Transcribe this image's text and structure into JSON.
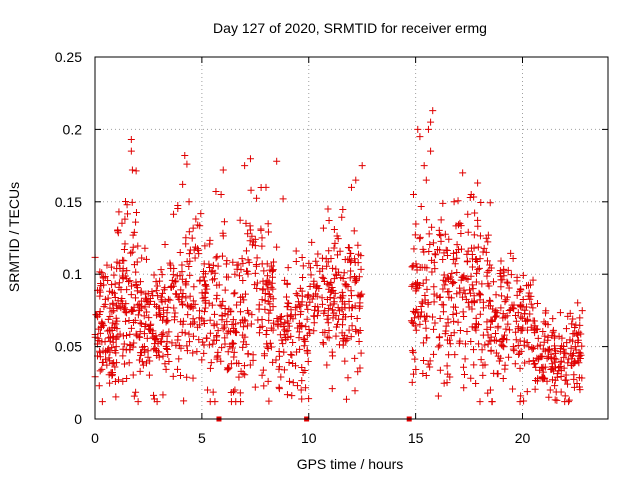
{
  "chart_data": {
    "type": "scatter",
    "title": "Day 127 of 2020, SRMTID for receiver ermg",
    "xlabel": "GPS time / hours",
    "ylabel": "SRMTID / TECUs",
    "xlim": [
      0,
      24
    ],
    "ylim": [
      0,
      0.25
    ],
    "xticks": [
      0,
      5,
      10,
      15,
      20
    ],
    "xtick_labels": [
      "0",
      "5",
      "10",
      "15",
      "20"
    ],
    "yticks": [
      0,
      0.05,
      0.1,
      0.15,
      0.2,
      0.25
    ],
    "ytick_labels": [
      "0",
      "0.05",
      "0.1",
      "0.15",
      "0.2",
      "0.25"
    ],
    "grid": true,
    "marker": "plus",
    "color": "#e00000",
    "series": [
      {
        "name": "SRMTID",
        "clusters": [
          {
            "x_range": [
              0.0,
              1.0
            ],
            "base": 0.065,
            "spread": 0.022,
            "count": 110
          },
          {
            "x_range": [
              1.0,
              2.0
            ],
            "base": 0.085,
            "spread": 0.03,
            "count": 100
          },
          {
            "x_range": [
              2.0,
              3.5
            ],
            "base": 0.065,
            "spread": 0.02,
            "count": 130
          },
          {
            "x_range": [
              3.5,
              5.5
            ],
            "base": 0.08,
            "spread": 0.028,
            "count": 150
          },
          {
            "x_range": [
              5.5,
              7.0
            ],
            "base": 0.065,
            "spread": 0.03,
            "count": 120
          },
          {
            "x_range": [
              7.0,
              8.5
            ],
            "base": 0.085,
            "spread": 0.03,
            "count": 110
          },
          {
            "x_range": [
              8.5,
              10.0
            ],
            "base": 0.06,
            "spread": 0.022,
            "count": 110
          },
          {
            "x_range": [
              10.0,
              12.5
            ],
            "base": 0.085,
            "spread": 0.025,
            "count": 190
          },
          {
            "x_range": [
              14.8,
              16.0
            ],
            "base": 0.08,
            "spread": 0.03,
            "count": 90
          },
          {
            "x_range": [
              16.0,
              18.5
            ],
            "base": 0.085,
            "spread": 0.03,
            "count": 200
          },
          {
            "x_range": [
              18.5,
              20.5
            ],
            "base": 0.065,
            "spread": 0.022,
            "count": 150
          },
          {
            "x_range": [
              20.5,
              22.8
            ],
            "base": 0.045,
            "spread": 0.015,
            "count": 170
          }
        ],
        "peaks": [
          [
            1.7,
            0.193
          ],
          [
            1.7,
            0.185
          ],
          [
            1.75,
            0.172
          ],
          [
            1.5,
            0.148
          ],
          [
            1.4,
            0.138
          ],
          [
            4.2,
            0.182
          ],
          [
            4.3,
            0.176
          ],
          [
            4.1,
            0.162
          ],
          [
            4.4,
            0.15
          ],
          [
            6.0,
            0.172
          ],
          [
            5.9,
            0.155
          ],
          [
            7.0,
            0.175
          ],
          [
            7.3,
            0.158
          ],
          [
            8.5,
            0.178
          ],
          [
            8.0,
            0.16
          ],
          [
            8.8,
            0.152
          ],
          [
            10.9,
            0.145
          ],
          [
            12.0,
            0.16
          ],
          [
            12.2,
            0.165
          ],
          [
            12.5,
            0.175
          ],
          [
            15.1,
            0.2
          ],
          [
            15.2,
            0.195
          ],
          [
            15.6,
            0.2
          ],
          [
            15.7,
            0.205
          ],
          [
            15.8,
            0.213
          ],
          [
            15.7,
            0.185
          ],
          [
            15.4,
            0.175
          ],
          [
            15.5,
            0.165
          ],
          [
            17.2,
            0.17
          ],
          [
            17.9,
            0.163
          ],
          [
            17.6,
            0.155
          ],
          [
            14.9,
            0.155
          ],
          [
            16.8,
            0.15
          ]
        ],
        "lows": [
          [
            0.2,
            0.023
          ],
          [
            1.1,
            0.027
          ],
          [
            1.3,
            0.026
          ],
          [
            4.0,
            0.03
          ],
          [
            5.4,
            0.035
          ],
          [
            6.8,
            0.018
          ],
          [
            7.5,
            0.022
          ],
          [
            8.1,
            0.026
          ],
          [
            9.1,
            0.026
          ],
          [
            11.1,
            0.021
          ],
          [
            14.9,
            0.031
          ],
          [
            15.5,
            0.03
          ],
          [
            16.5,
            0.031
          ],
          [
            18.5,
            0.02
          ],
          [
            19.1,
            0.028
          ],
          [
            22.0,
            0.016
          ],
          [
            21.3,
            0.02
          ]
        ]
      }
    ],
    "gap_markers_x": [
      5.8,
      9.9,
      14.7
    ],
    "gap_markers_y": 0
  }
}
